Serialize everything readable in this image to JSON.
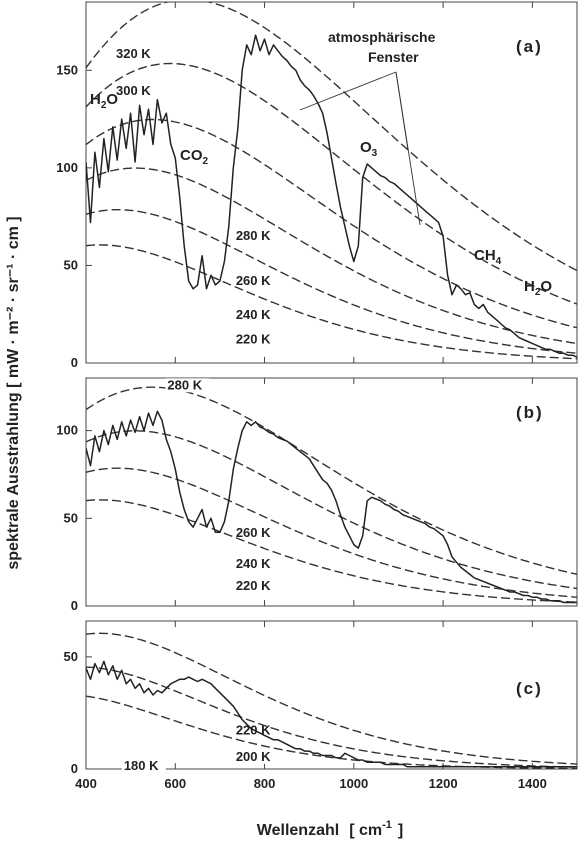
{
  "chart_data": [
    {
      "type": "line",
      "panel": "(a)",
      "xlim": [
        400,
        1500
      ],
      "ylim": [
        0,
        185
      ],
      "yticks": [
        0,
        50,
        100,
        150
      ],
      "planck_curves": [
        {
          "label": "320 K",
          "T": 320
        },
        {
          "label": "300 K",
          "T": 300
        },
        {
          "label": "280 K",
          "T": 280
        },
        {
          "label": "260 K",
          "T": 260
        },
        {
          "label": "240 K",
          "T": 240
        },
        {
          "label": "220 K",
          "T": 220
        }
      ],
      "spectrum": {
        "x": [
          400,
          410,
          420,
          430,
          440,
          450,
          460,
          470,
          480,
          490,
          500,
          510,
          520,
          530,
          540,
          550,
          560,
          570,
          580,
          590,
          600,
          610,
          620,
          630,
          640,
          650,
          660,
          670,
          680,
          690,
          700,
          710,
          720,
          730,
          740,
          750,
          760,
          770,
          780,
          790,
          800,
          810,
          820,
          830,
          840,
          850,
          860,
          870,
          880,
          890,
          900,
          910,
          920,
          930,
          940,
          950,
          960,
          970,
          980,
          990,
          1000,
          1010,
          1020,
          1030,
          1040,
          1050,
          1060,
          1070,
          1080,
          1090,
          1100,
          1110,
          1120,
          1130,
          1140,
          1150,
          1160,
          1170,
          1180,
          1190,
          1200,
          1210,
          1220,
          1230,
          1240,
          1250,
          1260,
          1270,
          1280,
          1290,
          1300,
          1310,
          1320,
          1330,
          1340,
          1350,
          1360,
          1370,
          1380,
          1390,
          1400,
          1410,
          1420,
          1430,
          1440,
          1450,
          1460,
          1470,
          1480,
          1490,
          1500
        ],
        "y": [
          103,
          72,
          108,
          90,
          115,
          98,
          121,
          104,
          125,
          110,
          128,
          103,
          132,
          117,
          130,
          112,
          135,
          123,
          128,
          112,
          105,
          85,
          60,
          42,
          38,
          40,
          55,
          38,
          45,
          40,
          42,
          52,
          70,
          100,
          120,
          150,
          163,
          158,
          168,
          160,
          166,
          158,
          163,
          160,
          157,
          155,
          152,
          150,
          145,
          142,
          140,
          137,
          133,
          128,
          118,
          105,
          92,
          80,
          70,
          60,
          52,
          60,
          95,
          102,
          100,
          98,
          96,
          95,
          93,
          92,
          90,
          88,
          86,
          84,
          82,
          80,
          78,
          76,
          74,
          72,
          65,
          45,
          35,
          40,
          38,
          35,
          36,
          30,
          28,
          30,
          26,
          24,
          22,
          20,
          18,
          17,
          15,
          13,
          12,
          11,
          10,
          9,
          8,
          7,
          7,
          6,
          5,
          5,
          4,
          4,
          3
        ]
      },
      "annotations": {
        "title_lines": [
          "atmosphärische",
          "Fenster"
        ],
        "h2o_left": {
          "base": "H",
          "sub": "2",
          "rest": "O"
        },
        "co2": {
          "base": "CO",
          "sub": "2"
        },
        "o3": {
          "base": "O",
          "sub": "3"
        },
        "ch4": {
          "base": "CH",
          "sub": "4"
        },
        "h2o_right": {
          "base": "H",
          "sub": "2",
          "rest": "O"
        }
      }
    },
    {
      "type": "line",
      "panel": "(b)",
      "xlim": [
        400,
        1500
      ],
      "ylim": [
        0,
        130
      ],
      "yticks": [
        0,
        50,
        100
      ],
      "planck_curves": [
        {
          "label": "280 K",
          "T": 280
        },
        {
          "label": "260 K",
          "T": 260
        },
        {
          "label": "240 K",
          "T": 240
        },
        {
          "label": "220 K",
          "T": 220
        }
      ],
      "spectrum": {
        "x": [
          400,
          410,
          420,
          430,
          440,
          450,
          460,
          470,
          480,
          490,
          500,
          510,
          520,
          530,
          540,
          550,
          560,
          570,
          580,
          590,
          600,
          610,
          620,
          630,
          640,
          650,
          660,
          670,
          680,
          690,
          700,
          710,
          720,
          730,
          740,
          750,
          760,
          770,
          780,
          790,
          800,
          810,
          820,
          830,
          840,
          850,
          860,
          870,
          880,
          890,
          900,
          910,
          920,
          930,
          940,
          950,
          960,
          970,
          980,
          990,
          1000,
          1010,
          1020,
          1030,
          1040,
          1050,
          1060,
          1070,
          1080,
          1090,
          1100,
          1110,
          1120,
          1130,
          1140,
          1150,
          1160,
          1170,
          1180,
          1190,
          1200,
          1210,
          1220,
          1230,
          1240,
          1250,
          1260,
          1270,
          1280,
          1290,
          1300,
          1310,
          1320,
          1330,
          1340,
          1350,
          1360,
          1370,
          1380,
          1390,
          1400,
          1410,
          1420,
          1430,
          1440,
          1450,
          1460,
          1470,
          1480,
          1490,
          1500
        ],
        "y": [
          90,
          80,
          97,
          88,
          100,
          92,
          103,
          95,
          105,
          97,
          106,
          99,
          108,
          100,
          110,
          103,
          111,
          106,
          95,
          88,
          78,
          65,
          55,
          48,
          45,
          50,
          55,
          45,
          50,
          42,
          42,
          48,
          60,
          78,
          90,
          100,
          105,
          103,
          105,
          102,
          101,
          99,
          98,
          96,
          95,
          94,
          92,
          90,
          88,
          86,
          84,
          80,
          76,
          72,
          70,
          66,
          60,
          52,
          45,
          40,
          35,
          33,
          40,
          60,
          62,
          61,
          60,
          58,
          57,
          55,
          54,
          52,
          51,
          50,
          49,
          48,
          47,
          45,
          44,
          42,
          40,
          35,
          28,
          25,
          22,
          20,
          18,
          16,
          15,
          14,
          13,
          12,
          11,
          10,
          9,
          8,
          8,
          7,
          6,
          6,
          5,
          5,
          4,
          4,
          3,
          3,
          3,
          2,
          2,
          2,
          2
        ]
      }
    },
    {
      "type": "line",
      "panel": "(c)",
      "xlim": [
        400,
        1500
      ],
      "ylim": [
        0,
        66
      ],
      "yticks": [
        0,
        50
      ],
      "planck_curves": [
        {
          "label": "220 K",
          "T": 220
        },
        {
          "label": "200 K",
          "T": 200
        },
        {
          "label": "180 K",
          "T": 180
        }
      ],
      "spectrum": {
        "x": [
          400,
          410,
          420,
          430,
          440,
          450,
          460,
          470,
          480,
          490,
          500,
          510,
          520,
          530,
          540,
          550,
          560,
          570,
          580,
          590,
          600,
          610,
          620,
          630,
          640,
          650,
          660,
          670,
          680,
          690,
          700,
          710,
          720,
          730,
          740,
          750,
          760,
          770,
          780,
          790,
          800,
          810,
          820,
          830,
          840,
          850,
          860,
          870,
          880,
          890,
          900,
          910,
          920,
          930,
          940,
          950,
          960,
          970,
          980,
          990,
          1000,
          1010,
          1020,
          1030,
          1040,
          1050,
          1060,
          1070,
          1080,
          1090,
          1100,
          1110,
          1120,
          1130,
          1140,
          1150,
          1160,
          1170,
          1180,
          1190,
          1200,
          1210,
          1220,
          1230,
          1240,
          1250,
          1260,
          1270,
          1280,
          1290,
          1300,
          1310,
          1320,
          1330,
          1340,
          1350,
          1360,
          1370,
          1380,
          1390,
          1400,
          1410,
          1420,
          1430,
          1440,
          1450,
          1460,
          1470,
          1480,
          1490,
          1500
        ],
        "y": [
          45,
          40,
          47,
          43,
          48,
          42,
          46,
          40,
          44,
          38,
          40,
          36,
          38,
          34,
          36,
          33,
          35,
          34,
          36,
          38,
          39,
          40,
          40,
          41,
          40,
          39,
          40,
          39,
          38,
          36,
          34,
          32,
          30,
          28,
          25,
          22,
          20,
          18,
          17,
          16,
          15,
          14,
          13,
          13,
          12,
          11,
          10,
          9,
          9,
          8,
          8,
          7,
          7,
          6,
          6,
          6,
          5,
          5,
          7,
          6,
          5,
          4,
          4,
          3,
          3,
          3,
          3,
          2,
          2,
          2,
          2,
          2,
          1,
          1,
          1,
          1,
          1,
          1,
          1,
          1,
          1,
          1,
          1,
          1,
          1,
          1,
          1,
          1,
          1,
          1,
          1,
          1,
          1,
          1,
          1,
          1,
          1,
          1,
          1,
          1,
          1,
          1,
          1,
          1,
          1,
          1,
          1,
          1,
          1,
          1,
          1
        ]
      }
    }
  ],
  "x_axis": {
    "ticks": [
      400,
      600,
      800,
      1000,
      1200,
      1400
    ],
    "title_main": "Wellenzahl",
    "title_unit_open": "[ cm",
    "title_unit_sup": "-1",
    "title_unit_close": "]"
  },
  "y_axis": {
    "title": "spektrale Ausstrahlung [ mW · m⁻² · sr⁻¹ · cm ]"
  }
}
